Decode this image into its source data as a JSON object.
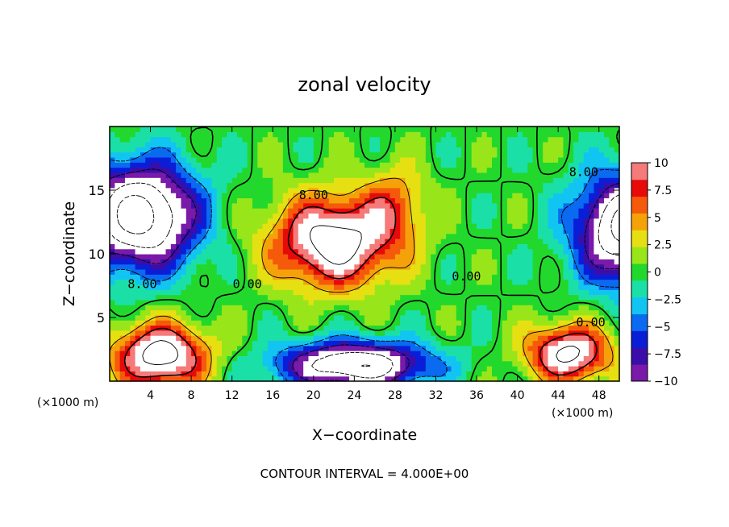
{
  "chart_data": {
    "type": "heatmap",
    "title": "zonal velocity",
    "xlabel": "X−coordinate",
    "ylabel": "Z−coordinate",
    "x_unit_left": "(×1000 m)",
    "x_unit_right": "(×1000 m)",
    "xlim": [
      0,
      50
    ],
    "ylim": [
      0,
      20
    ],
    "x_ticks": [
      "4",
      "8",
      "12",
      "16",
      "20",
      "24",
      "28",
      "32",
      "36",
      "40",
      "44",
      "48"
    ],
    "y_ticks": [
      "5",
      "10",
      "15"
    ],
    "colorbar": {
      "range": [
        -10,
        10
      ],
      "labels": [
        "10",
        "7.5",
        "5",
        "2.5",
        "0",
        "−2.5",
        "−5",
        "−7.5",
        "−10"
      ],
      "colors_low_to_high": [
        "#7a1aa8",
        "#3a0ea8",
        "#0a1ed8",
        "#0a6af0",
        "#12c4f2",
        "#1ae0a8",
        "#22d82c",
        "#98e61a",
        "#e6e012",
        "#f5a20a",
        "#f55a0a",
        "#e60a0a",
        "#f57a7a"
      ]
    },
    "contour_labels": [
      {
        "text": "8.00",
        "x": 20,
        "z": 14.6
      },
      {
        "text": "8.00",
        "x": 46.5,
        "z": 16.4
      },
      {
        "text": "8.00",
        "x": 3.2,
        "z": 7.6
      },
      {
        "text": "0.00",
        "x": 13.5,
        "z": 7.6
      },
      {
        "text": "0.00",
        "x": 35,
        "z": 8.2
      },
      {
        "text": "0.00",
        "x": 47.2,
        "z": 4.6
      }
    ],
    "features": [
      {
        "name": "jet core",
        "x": 22,
        "z": 11,
        "sx": 6,
        "sz": 3.5,
        "value": 14
      },
      {
        "name": "jet lobe",
        "x": 28,
        "z": 14,
        "sx": 3,
        "sz": 3,
        "value": 5
      },
      {
        "name": "upper-left minimum",
        "x": 3,
        "z": 13,
        "sx": 5.5,
        "sz": 4,
        "value": -18
      },
      {
        "name": "upper-right minimum",
        "x": 51,
        "z": 12,
        "sx": 5,
        "sz": 4,
        "value": -18
      },
      {
        "name": "lower-middle minimum",
        "x": 24,
        "z": 1.3,
        "sx": 7,
        "sz": 1.8,
        "value": -16
      },
      {
        "name": "lower-left maximum",
        "x": 5,
        "z": 2,
        "sx": 4.5,
        "sz": 2.5,
        "value": 14
      },
      {
        "name": "lower-right maximum",
        "x": 45,
        "z": 2.2,
        "sx": 4,
        "sz": 2.2,
        "value": 13
      }
    ]
  },
  "footer": {
    "contour_interval": "CONTOUR INTERVAL = 4.000E+00"
  }
}
